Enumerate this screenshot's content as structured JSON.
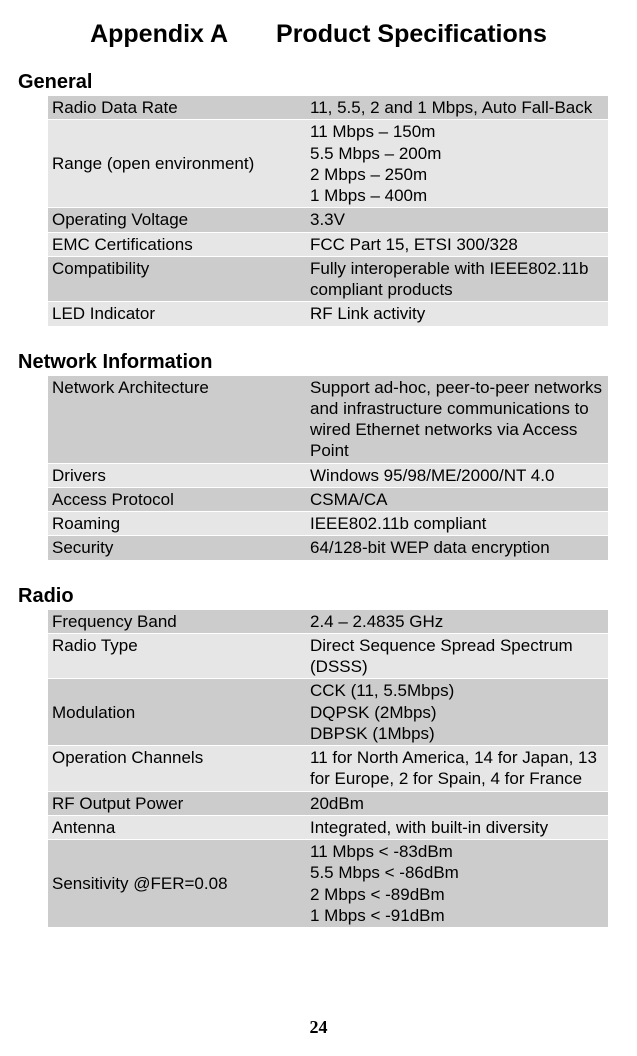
{
  "title_prefix": "Appendix A",
  "title_main": "Product Specifications",
  "page_number": "24",
  "sections": {
    "general": {
      "heading": "General",
      "rows": [
        {
          "label": "Radio Data Rate",
          "value": "11, 5.5, 2 and 1 Mbps, Auto Fall-Back",
          "shade": true
        },
        {
          "label": "Range (open environment)",
          "value": "11 Mbps – 150m\n5.5 Mbps – 200m\n2 Mbps – 250m\n1 Mbps – 400m",
          "shade": false
        },
        {
          "label": "Operating Voltage",
          "value": "3.3V",
          "shade": true
        },
        {
          "label": "EMC Certifications",
          "value": "FCC Part 15, ETSI 300/328",
          "shade": false
        },
        {
          "label": "Compatibility",
          "value": "Fully interoperable with IEEE802.11b compliant products",
          "shade": true
        },
        {
          "label": "LED Indicator",
          "value": "RF Link activity",
          "shade": false
        }
      ]
    },
    "network": {
      "heading": "Network Information",
      "rows": [
        {
          "label": "Network Architecture",
          "value": "Support ad-hoc, peer-to-peer networks and infrastructure communications to wired Ethernet networks via Access Point",
          "shade": true
        },
        {
          "label": "Drivers",
          "value": "Windows 95/98/ME/2000/NT 4.0",
          "shade": false
        },
        {
          "label": "Access Protocol",
          "value": "CSMA/CA",
          "shade": true
        },
        {
          "label": "Roaming",
          "value": "IEEE802.11b compliant",
          "shade": false
        },
        {
          "label": "Security",
          "value": "64/128-bit WEP data encryption",
          "shade": true
        }
      ]
    },
    "radio": {
      "heading": "Radio",
      "rows": [
        {
          "label": "Frequency Band",
          "value": "2.4 – 2.4835 GHz",
          "shade": true
        },
        {
          "label": "Radio Type",
          "value": "Direct Sequence Spread Spectrum (DSSS)",
          "shade": false
        },
        {
          "label": "Modulation",
          "value": "CCK (11, 5.5Mbps)\nDQPSK (2Mbps)\nDBPSK (1Mbps)",
          "shade": true
        },
        {
          "label": "Operation Channels",
          "value": "11 for North America, 14 for Japan, 13 for Europe, 2 for Spain, 4 for France",
          "shade": false
        },
        {
          "label": "RF Output Power",
          "value": "20dBm",
          "shade": true
        },
        {
          "label": "Antenna",
          "value": "Integrated, with built-in diversity",
          "shade": false
        },
        {
          "label": "Sensitivity @FER=0.08",
          "value": "11 Mbps < -83dBm\n5.5 Mbps < -86dBm\n2 Mbps < -89dBm\n1 Mbps < -91dBm",
          "shade": true
        }
      ]
    }
  }
}
